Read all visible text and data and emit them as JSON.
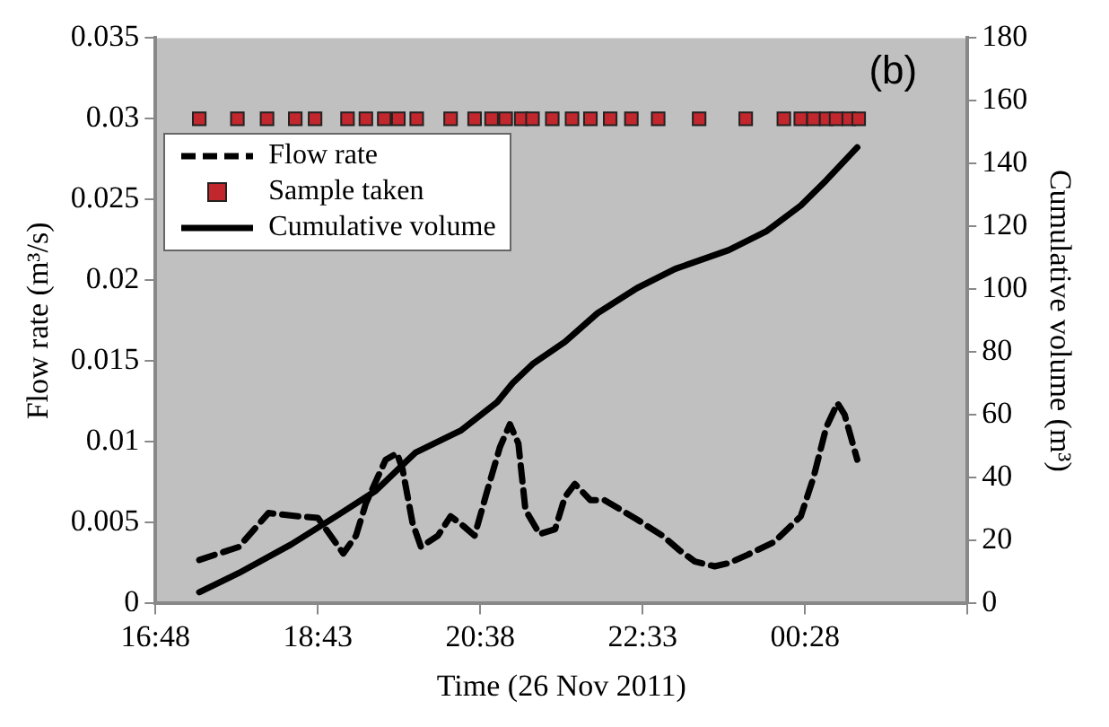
{
  "chart_data": {
    "type": "line",
    "xlabel": "Time (26 Nov 2011)",
    "ylabel": "Flow rate (m³/s)",
    "y2label": "Cumulative volume (m³)",
    "annotations": [
      "(b)"
    ],
    "xlim": [
      "2011-11-26T16:48",
      "2011-11-27T02:23"
    ],
    "xticks": [
      {
        "value": "2011-11-26T16:48",
        "label": "16:48"
      },
      {
        "value": "2011-11-26T18:43",
        "label": "18:43"
      },
      {
        "value": "2011-11-26T20:38",
        "label": "20:38"
      },
      {
        "value": "2011-11-26T22:33",
        "label": "22:33"
      },
      {
        "value": "2011-11-27T00:28",
        "label": "00:28"
      },
      {
        "value": "2011-11-27T02:23",
        "label": null
      }
    ],
    "ylim": [
      0,
      0.035
    ],
    "yticks": [
      0,
      0.005,
      0.01,
      0.015,
      0.02,
      0.025,
      0.03,
      0.035
    ],
    "y2lim": [
      0,
      180
    ],
    "y2ticks": [
      0,
      20,
      40,
      60,
      80,
      100,
      120,
      140,
      160,
      180
    ],
    "legend": "top left",
    "grid": false,
    "series": [
      {
        "name": "Flow rate",
        "type": "line",
        "line_style": "dashed",
        "marker": "none",
        "color": "#000000",
        "x": [
          "2011-11-26T17:19",
          "2011-11-26T17:47",
          "2011-11-26T18:08",
          "2011-11-26T18:29",
          "2011-11-26T18:43",
          "2011-11-26T18:52",
          "2011-11-26T19:01",
          "2011-11-26T19:10",
          "2011-11-26T19:17",
          "2011-11-26T19:31",
          "2011-11-26T19:39",
          "2011-11-26T19:43",
          "2011-11-26T19:50",
          "2011-11-26T19:56",
          "2011-11-26T20:08",
          "2011-11-26T20:17",
          "2011-11-26T20:26",
          "2011-11-26T20:34",
          "2011-11-26T20:43",
          "2011-11-26T20:52",
          "2011-11-26T20:59",
          "2011-11-26T21:05",
          "2011-11-26T21:10",
          "2011-11-26T21:20",
          "2011-11-26T21:31",
          "2011-11-26T21:38",
          "2011-11-26T21:45",
          "2011-11-26T21:56",
          "2011-11-26T22:06",
          "2011-11-26T22:29",
          "2011-11-26T22:47",
          "2011-11-26T22:59",
          "2011-11-26T23:10",
          "2011-11-26T23:24",
          "2011-11-26T23:34",
          "2011-11-26T23:47",
          "2011-11-27T00:06",
          "2011-11-27T00:25",
          "2011-11-27T00:34",
          "2011-11-27T00:43",
          "2011-11-27T00:51",
          "2011-11-27T00:56",
          "2011-11-27T01:05"
        ],
        "values": [
          0.0027,
          0.0035,
          0.0056,
          0.0054,
          0.0053,
          0.0042,
          0.0031,
          0.0042,
          0.0062,
          0.0089,
          0.0093,
          0.0083,
          0.005,
          0.0035,
          0.0042,
          0.0054,
          0.0048,
          0.0042,
          0.007,
          0.0097,
          0.0111,
          0.0099,
          0.0058,
          0.0043,
          0.0046,
          0.0066,
          0.0074,
          0.0064,
          0.0064,
          0.0052,
          0.0042,
          0.0033,
          0.0026,
          0.0023,
          0.0025,
          0.003,
          0.0038,
          0.0054,
          0.0078,
          0.0109,
          0.0124,
          0.0117,
          0.0089
        ]
      },
      {
        "name": "Sample taken",
        "type": "scatter",
        "marker": "square",
        "color": "#c1272d",
        "x": [
          "2011-11-26T17:19",
          "2011-11-26T17:46",
          "2011-11-26T18:07",
          "2011-11-26T18:27",
          "2011-11-26T18:41",
          "2011-11-26T19:04",
          "2011-11-26T19:17",
          "2011-11-26T19:30",
          "2011-11-26T19:40",
          "2011-11-26T19:53",
          "2011-11-26T20:17",
          "2011-11-26T20:34",
          "2011-11-26T20:46",
          "2011-11-26T20:56",
          "2011-11-26T21:07",
          "2011-11-26T21:15",
          "2011-11-26T21:29",
          "2011-11-26T21:43",
          "2011-11-26T21:56",
          "2011-11-26T22:10",
          "2011-11-26T22:25",
          "2011-11-26T22:44",
          "2011-11-26T23:13",
          "2011-11-26T23:46",
          "2011-11-27T00:13",
          "2011-11-27T00:25",
          "2011-11-27T00:34",
          "2011-11-27T00:43",
          "2011-11-27T00:50",
          "2011-11-27T00:59",
          "2011-11-27T01:06"
        ],
        "values": [
          0.03,
          0.03,
          0.03,
          0.03,
          0.03,
          0.03,
          0.03,
          0.03,
          0.03,
          0.03,
          0.03,
          0.03,
          0.03,
          0.03,
          0.03,
          0.03,
          0.03,
          0.03,
          0.03,
          0.03,
          0.03,
          0.03,
          0.03,
          0.03,
          0.03,
          0.03,
          0.03,
          0.03,
          0.03,
          0.03,
          0.03
        ]
      },
      {
        "name": "Cumulative volume",
        "type": "line",
        "line_style": "solid",
        "marker": "none",
        "axis": "y2",
        "color": "#000000",
        "x": [
          "2011-11-26T17:19",
          "2011-11-26T17:47",
          "2011-11-26T18:24",
          "2011-11-26T18:56",
          "2011-11-26T19:24",
          "2011-11-26T19:52",
          "2011-11-26T20:24",
          "2011-11-26T20:50",
          "2011-11-26T21:01",
          "2011-11-26T21:15",
          "2011-11-26T21:38",
          "2011-11-26T22:01",
          "2011-11-26T22:29",
          "2011-11-26T22:56",
          "2011-11-26T23:34",
          "2011-11-27T00:01",
          "2011-11-27T00:25",
          "2011-11-27T00:43",
          "2011-11-27T01:05"
        ],
        "values": [
          3.6,
          9.7,
          18.8,
          27.8,
          35.9,
          48,
          55,
          64.1,
          70.2,
          76.2,
          83.3,
          92.4,
          100.4,
          106.5,
          112.5,
          118.6,
          126.7,
          134.7,
          145.2
        ]
      }
    ]
  }
}
